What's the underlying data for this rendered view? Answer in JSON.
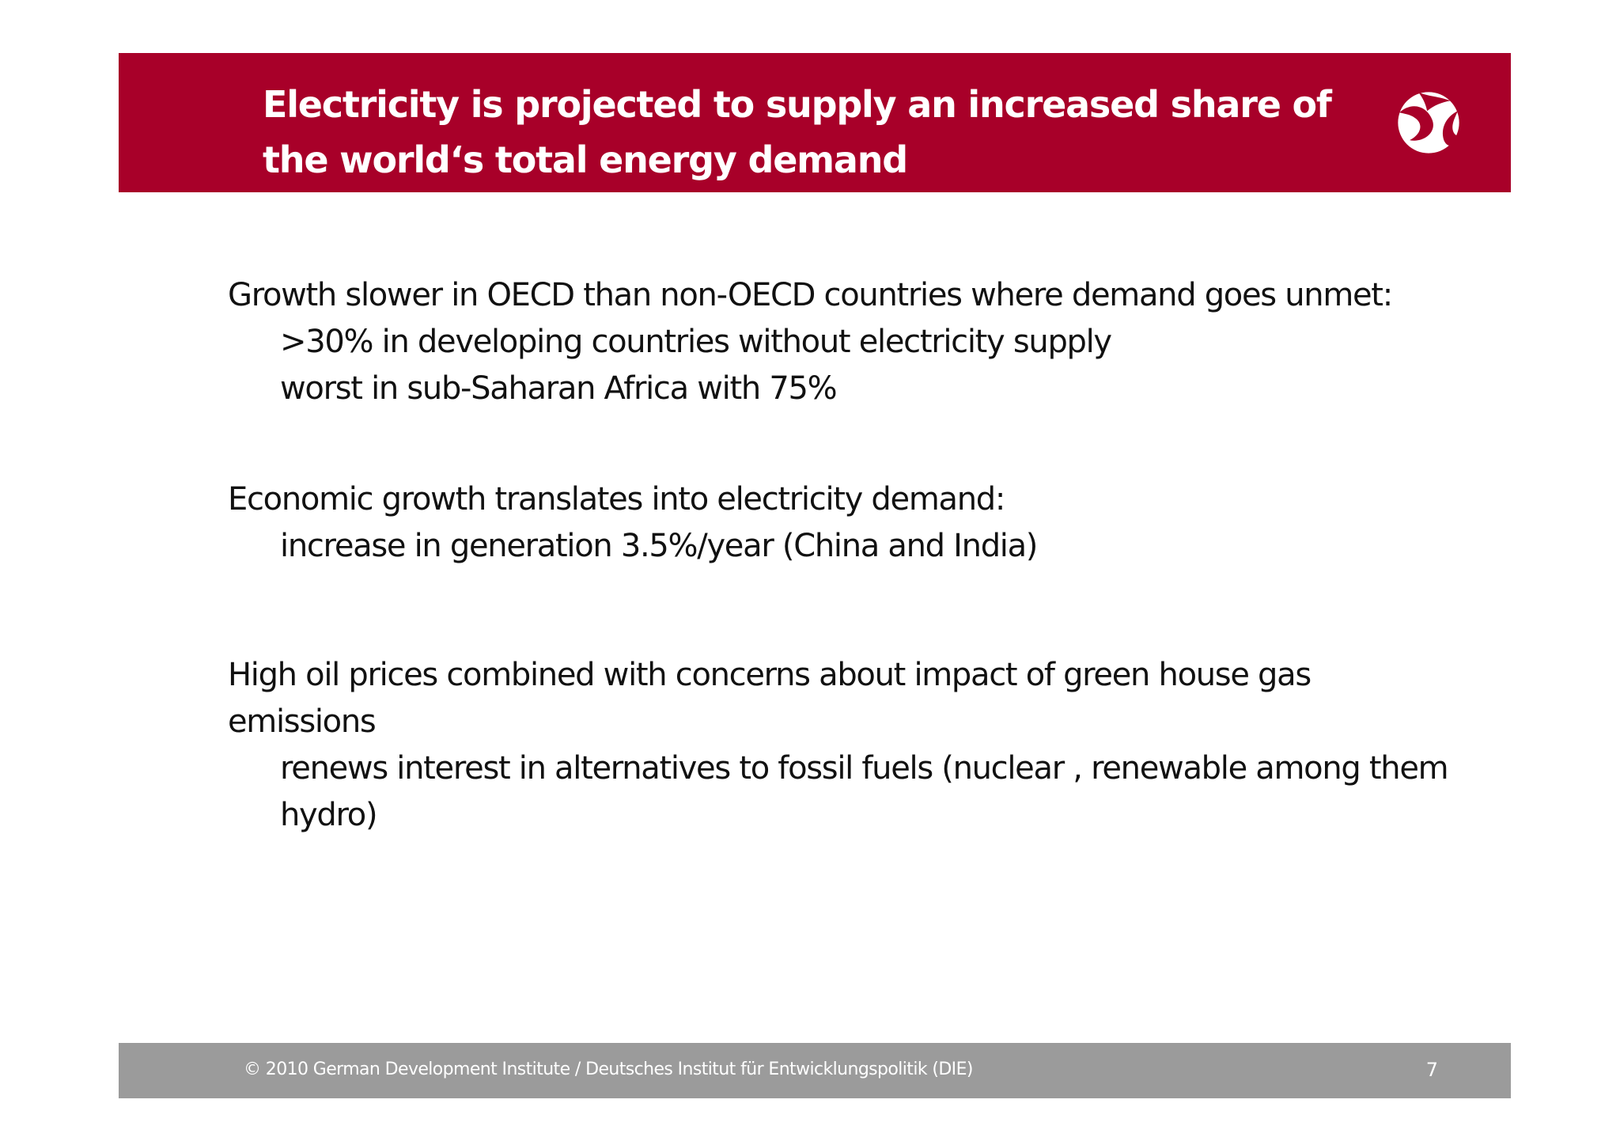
{
  "slide": {
    "title": "Electricity is projected to supply an increased share of the world‘s total energy demand",
    "bullets": [
      {
        "main": "Growth slower in OECD than non-OECD countries where demand goes unmet:",
        "subs": [
          ">30% in developing countries without electricity supply",
          "worst in sub-Saharan Africa with 75%"
        ]
      },
      {
        "main": "Economic growth translates into electricity demand:",
        "subs": [
          "increase in generation 3.5%/year (China and India)"
        ]
      },
      {
        "main": "High oil prices combined with concerns about impact of green house gas emissions",
        "subs": [
          "renews interest in alternatives to fossil fuels (nuclear , renewable among them hydro)"
        ]
      }
    ]
  },
  "footer": {
    "copyright": "© 2010  German Development Institute / Deutsches Institut für Entwicklungspolitik (DIE)",
    "page_number": "7"
  },
  "colors": {
    "title_bar": "#a80029",
    "footer_bar": "#9b9b9b",
    "text": "#111111",
    "logo": "#ffffff"
  },
  "icons": {
    "logo": "die-globe-logo"
  }
}
